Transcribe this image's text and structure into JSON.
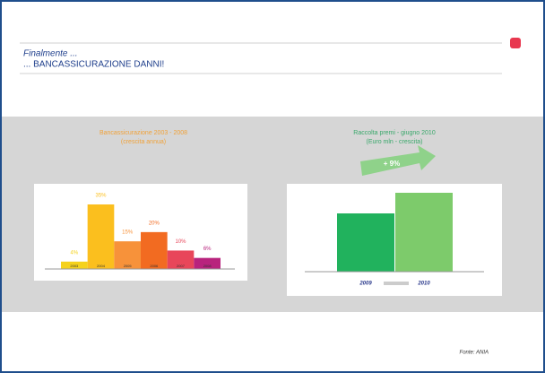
{
  "header": {
    "line1": "Finalmente ...",
    "line2": "... BANCASSICURAZIONE DANNI!"
  },
  "chart_data": [
    {
      "type": "bar",
      "title": "Bancassicurazione 2003 - 2008",
      "subtitle": "(crescita annua)",
      "categories": [
        "2003",
        "2004",
        "2005",
        "2006",
        "2007",
        "2008"
      ],
      "values": [
        4,
        35,
        15,
        20,
        10,
        6
      ],
      "value_labels": [
        "4%",
        "35%",
        "15%",
        "20%",
        "10%",
        "6%"
      ],
      "colors": [
        "#f5d21c",
        "#fbbf1e",
        "#f7923a",
        "#f26b21",
        "#e8465a",
        "#b8237d"
      ]
    },
    {
      "type": "bar",
      "title": "Raccolta premi - giugno 2010",
      "subtitle": "(Euro mln - crescita)",
      "annotation": "+ 9%",
      "categories": [
        "2009",
        "2010"
      ],
      "values": [
        65,
        88
      ],
      "colors": [
        "#21b25d",
        "#7dcb6b"
      ]
    }
  ],
  "footer": "Fonte: ANIA"
}
